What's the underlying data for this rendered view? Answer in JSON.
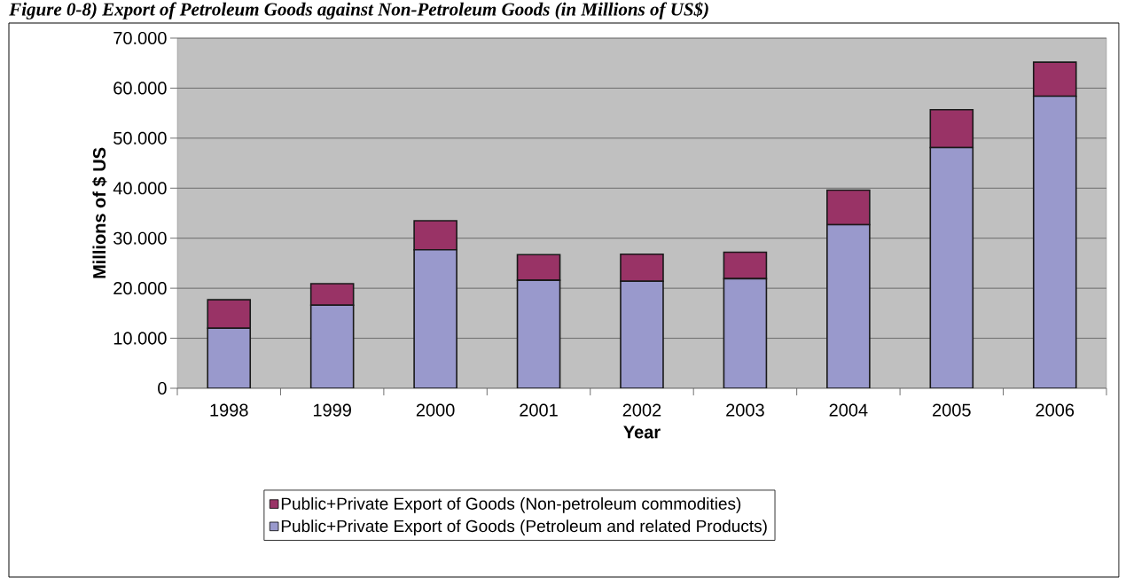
{
  "chart_data": {
    "type": "bar",
    "stacked": true,
    "title": "Figure 0-8) Export of Petroleum Goods against Non-Petroleum Goods (in Millions of US$)",
    "xlabel": "Year",
    "ylabel": "Millions of $ US",
    "categories": [
      "1998",
      "1999",
      "2000",
      "2001",
      "2002",
      "2003",
      "2004",
      "2005",
      "2006"
    ],
    "series": [
      {
        "name": "Public+Private Export of Goods (Petroleum and related Products)",
        "color": "#9999cc",
        "values": [
          12000,
          16600,
          27700,
          21600,
          21400,
          21900,
          32700,
          48100,
          58400
        ]
      },
      {
        "name": "Public+Private Export of Goods (Non-petroleum commodities)",
        "color": "#993366",
        "values": [
          5700,
          4300,
          5800,
          5100,
          5400,
          5300,
          6900,
          7600,
          6800
        ]
      }
    ],
    "ylim": [
      0,
      70000
    ],
    "yticks": [
      0,
      {
        "value": 10000,
        "label": "10.000"
      },
      {
        "value": 20000,
        "label": "20.000"
      },
      {
        "value": 30000,
        "label": "30.000"
      },
      {
        "value": 40000,
        "label": "40.000"
      },
      {
        "value": 50000,
        "label": "50.000"
      },
      {
        "value": 60000,
        "label": "60.000"
      },
      {
        "value": 70000,
        "label": "70.000"
      }
    ],
    "grid": "y",
    "legend": "bottom"
  }
}
